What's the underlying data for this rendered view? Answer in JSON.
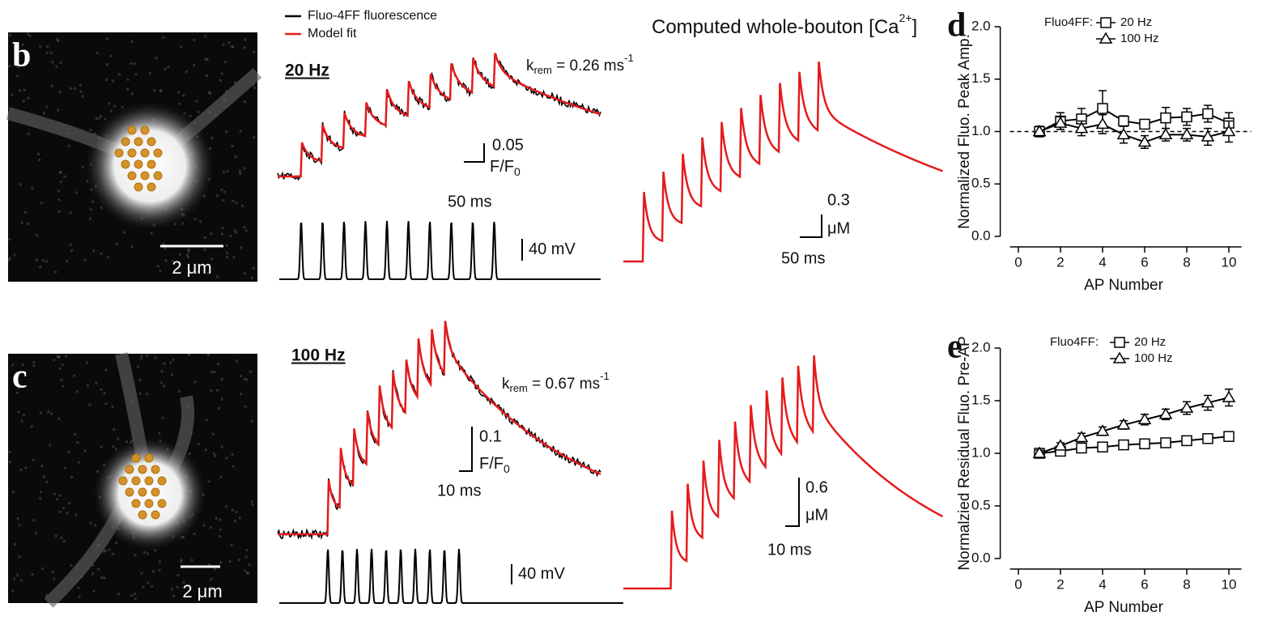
{
  "legend": {
    "fluo": "Fluo-4FF fluorescence",
    "fit": "Model fit"
  },
  "ca_title": [
    "Computed whole-bouton [Ca",
    "2+",
    "]"
  ],
  "panels": [
    {
      "label": "b",
      "scale_bar": "2 μm",
      "frequency": "20 Hz",
      "krem": [
        "k",
        "rem",
        " = 0.26 ms",
        "-1"
      ],
      "fluo_scale": [
        "0.05",
        "F/F",
        "0"
      ],
      "time_scale": "50 ms",
      "voltage_scale": "40 mV",
      "ca_scale": [
        "0.3",
        "μM"
      ],
      "ca_time_scale": "50 ms"
    },
    {
      "label": "c",
      "scale_bar": "2 μm",
      "frequency": "100 Hz",
      "krem": [
        "k",
        "rem",
        " = 0.67 ms",
        "-1"
      ],
      "fluo_scale": [
        "0.1",
        "F/F",
        "0"
      ],
      "time_scale": "10 ms",
      "voltage_scale": "40 mV",
      "ca_scale": [
        "0.6",
        "μM"
      ],
      "ca_time_scale": "10 ms"
    }
  ],
  "chart_data": [
    {
      "type": "line",
      "label": "d",
      "ylabel": "Normalized Fluo. Peak Amp.",
      "xlabel": "AP Number",
      "legend_title": "Fluo4FF:",
      "x": [
        1,
        2,
        3,
        4,
        5,
        6,
        7,
        8,
        9,
        10
      ],
      "series": [
        {
          "name": "20 Hz",
          "marker": "square",
          "color": "#000000",
          "values": [
            1.0,
            1.1,
            1.12,
            1.22,
            1.1,
            1.07,
            1.13,
            1.14,
            1.17,
            1.08
          ],
          "errors": [
            0.03,
            0.08,
            0.1,
            0.17,
            0.05,
            0.04,
            0.1,
            0.08,
            0.08,
            0.1
          ]
        },
        {
          "name": "100 Hz",
          "marker": "triangle",
          "color": "#000000",
          "values": [
            1.0,
            1.08,
            1.03,
            1.07,
            0.97,
            0.9,
            0.97,
            0.97,
            0.95,
            1.0
          ],
          "errors": [
            0.05,
            0.06,
            0.07,
            0.09,
            0.08,
            0.06,
            0.06,
            0.06,
            0.08,
            0.1
          ]
        }
      ],
      "reference_line": 1,
      "xlim": [
        -0.4,
        10.6
      ],
      "xticks": [
        0,
        2,
        4,
        6,
        8,
        10
      ],
      "ylim": [
        0,
        2
      ],
      "yticks": [
        {
          "value": 0,
          "label": "0.0"
        },
        0.5,
        {
          "value": 1,
          "label": "1.0"
        },
        1.5,
        {
          "value": 2,
          "label": "2.0"
        }
      ]
    },
    {
      "type": "line",
      "label": "e",
      "ylabel": "Normalzied Residual Fluo. Pre-AP",
      "xlabel": "AP Number",
      "legend_title": "Fluo4FF:",
      "x": [
        1,
        2,
        3,
        4,
        5,
        6,
        7,
        8,
        9,
        10
      ],
      "series": [
        {
          "name": "20 Hz",
          "marker": "square",
          "color": "#000000",
          "values": [
            1.0,
            1.02,
            1.05,
            1.06,
            1.08,
            1.09,
            1.1,
            1.12,
            1.14,
            1.16
          ],
          "errors": [
            0.02,
            0.02,
            0.02,
            0.02,
            0.02,
            0.02,
            0.02,
            0.02,
            0.02,
            0.02
          ]
        },
        {
          "name": "100 Hz",
          "marker": "triangle",
          "color": "#000000",
          "values": [
            1.0,
            1.07,
            1.15,
            1.21,
            1.27,
            1.32,
            1.37,
            1.43,
            1.48,
            1.53
          ],
          "errors": [
            0.03,
            0.03,
            0.04,
            0.04,
            0.04,
            0.05,
            0.05,
            0.06,
            0.07,
            0.08
          ]
        }
      ],
      "xlim": [
        -0.4,
        10.6
      ],
      "xticks": [
        0,
        2,
        4,
        6,
        8,
        10
      ],
      "ylim": [
        0,
        2
      ],
      "yticks": [
        {
          "value": 0,
          "label": "0.0"
        },
        0.5,
        {
          "value": 1,
          "label": "1.0"
        },
        1.5,
        {
          "value": 2,
          "label": "2.0"
        }
      ]
    }
  ]
}
